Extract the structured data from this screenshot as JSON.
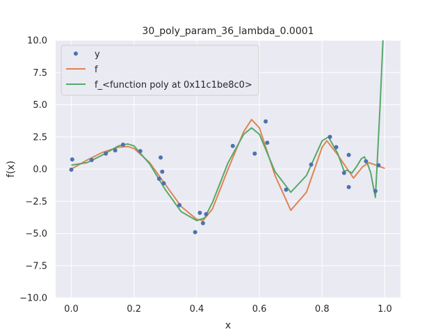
{
  "chart_data": {
    "type": "line",
    "title": "30_poly_param_36_lambda_0.0001",
    "xlabel": "x",
    "ylabel": "f(x)",
    "xlim": [
      -0.05,
      1.05
    ],
    "ylim": [
      -10,
      10
    ],
    "xticks": [
      0.0,
      0.2,
      0.4,
      0.6,
      0.8,
      1.0
    ],
    "xtick_labels": [
      "0.0",
      "0.2",
      "0.4",
      "0.6",
      "0.8",
      "1.0"
    ],
    "yticks": [
      -10,
      -7.5,
      -5,
      -2.5,
      0,
      2.5,
      5,
      7.5,
      10
    ],
    "ytick_labels": [
      "−10.0",
      "−7.5",
      "−5.0",
      "−2.5",
      "0.0",
      "2.5",
      "5.0",
      "7.5",
      "10.0"
    ],
    "grid": true,
    "legend_position": "top-left",
    "background": "#eaeaf2",
    "series": [
      {
        "name": "y",
        "kind": "scatter",
        "color": "#4c72b0",
        "x": [
          0.0,
          0.003,
          0.065,
          0.11,
          0.14,
          0.165,
          0.22,
          0.28,
          0.285,
          0.29,
          0.295,
          0.345,
          0.395,
          0.41,
          0.42,
          0.43,
          0.515,
          0.585,
          0.62,
          0.625,
          0.685,
          0.765,
          0.825,
          0.845,
          0.87,
          0.885,
          0.885,
          0.94,
          0.97,
          0.98
        ],
        "y": [
          -0.05,
          0.75,
          0.7,
          1.2,
          1.45,
          1.9,
          1.4,
          -0.75,
          0.9,
          -0.2,
          -1.1,
          -2.8,
          -4.9,
          -3.4,
          -4.2,
          -3.5,
          1.8,
          1.2,
          3.7,
          2.05,
          -1.6,
          0.35,
          2.5,
          1.7,
          -0.3,
          -1.4,
          1.1,
          0.6,
          -1.7,
          0.3
        ]
      },
      {
        "name": "f",
        "kind": "line",
        "color": "#dd8452",
        "x": [
          0.0,
          0.05,
          0.1,
          0.15,
          0.18,
          0.2,
          0.25,
          0.3,
          0.35,
          0.4,
          0.42,
          0.45,
          0.5,
          0.55,
          0.575,
          0.6,
          0.65,
          0.7,
          0.75,
          0.8,
          0.815,
          0.85,
          0.9,
          0.93,
          0.95,
          1.0
        ],
        "y": [
          0.0,
          0.7,
          1.3,
          1.7,
          1.75,
          1.6,
          0.5,
          -1.2,
          -2.9,
          -3.9,
          -4.0,
          -3.1,
          0.0,
          2.9,
          3.85,
          3.2,
          -0.5,
          -3.2,
          -1.8,
          1.7,
          2.2,
          1.1,
          -0.7,
          0.2,
          0.5,
          0.05
        ]
      },
      {
        "name": "f_<function poly at 0x11c1be8c0>",
        "kind": "line",
        "color": "#55a868",
        "x": [
          0.0,
          0.05,
          0.1,
          0.15,
          0.18,
          0.2,
          0.25,
          0.3,
          0.35,
          0.4,
          0.425,
          0.45,
          0.5,
          0.55,
          0.575,
          0.6,
          0.65,
          0.7,
          0.75,
          0.8,
          0.82,
          0.85,
          0.87,
          0.88,
          0.895,
          0.91,
          0.925,
          0.935,
          0.945,
          0.955,
          0.965,
          0.97,
          0.975,
          0.985,
          0.995
        ],
        "y": [
          0.3,
          0.5,
          1.1,
          1.8,
          1.95,
          1.8,
          0.4,
          -1.6,
          -3.3,
          -4.0,
          -3.8,
          -2.6,
          0.5,
          2.7,
          3.2,
          2.7,
          -0.2,
          -1.8,
          -0.5,
          2.2,
          2.5,
          1.2,
          -0.15,
          -0.1,
          -0.3,
          0.2,
          0.8,
          0.95,
          0.4,
          -0.3,
          -1.6,
          -2.2,
          0.2,
          5.0,
          10.5
        ]
      }
    ]
  }
}
